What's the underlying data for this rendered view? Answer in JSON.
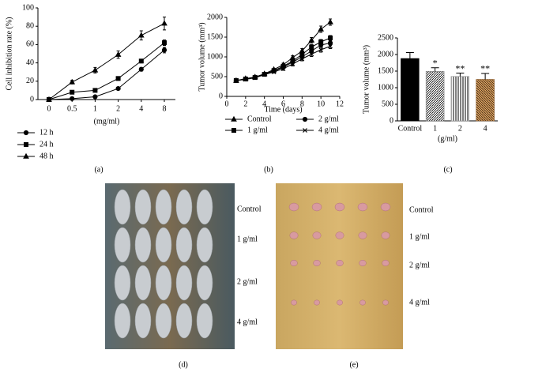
{
  "chart_data": [
    {
      "type": "line",
      "panel": "(a)",
      "ylabel": "Cell inhibition rate (%)",
      "xlabel": "(mg/ml)",
      "categories": [
        "0",
        "0.5",
        "1",
        "2",
        "4",
        "8"
      ],
      "ylim": [
        0,
        100
      ],
      "yticks": [
        0,
        20,
        40,
        60,
        80,
        100
      ],
      "series": [
        {
          "name": "12 h",
          "marker": "circle",
          "color": "#000000",
          "values": [
            0,
            1,
            3,
            12,
            33,
            54
          ],
          "errors": [
            0,
            0.5,
            1,
            1,
            2,
            3
          ]
        },
        {
          "name": "24 h",
          "marker": "square",
          "color": "#000000",
          "values": [
            0,
            8,
            10,
            23,
            42,
            62
          ],
          "errors": [
            0,
            1,
            1,
            2,
            2,
            3
          ]
        },
        {
          "name": "48 h",
          "marker": "triangle",
          "color": "#000000",
          "values": [
            0,
            19,
            32,
            49,
            70,
            83
          ],
          "errors": [
            0,
            2,
            3,
            4,
            5,
            7
          ]
        }
      ]
    },
    {
      "type": "line",
      "panel": "(b)",
      "ylabel": "Tumor volume (mm³)",
      "xlabel": "Time (days)",
      "x": [
        1,
        2,
        3,
        4,
        5,
        6,
        7,
        8,
        9,
        10,
        11
      ],
      "xlim": [
        0,
        12
      ],
      "xticks": [
        0,
        2,
        4,
        6,
        8,
        10,
        12
      ],
      "ylim": [
        0,
        2000
      ],
      "yticks": [
        0,
        500,
        1000,
        1500,
        2000
      ],
      "series": [
        {
          "name": "Control",
          "marker": "triangle",
          "color": "#000000",
          "values": [
            400,
            450,
            490,
            570,
            680,
            800,
            980,
            1150,
            1420,
            1700,
            1880
          ],
          "errors": [
            20,
            20,
            25,
            25,
            30,
            40,
            50,
            60,
            70,
            80,
            80
          ]
        },
        {
          "name": "1 g/ml",
          "marker": "square",
          "color": "#000000",
          "values": [
            400,
            440,
            480,
            560,
            650,
            760,
            900,
            1060,
            1250,
            1380,
            1480
          ],
          "errors": [
            20,
            20,
            25,
            25,
            30,
            40,
            50,
            50,
            60,
            60,
            60
          ]
        },
        {
          "name": "2 g/ml",
          "marker": "circle",
          "color": "#000000",
          "values": [
            400,
            440,
            480,
            560,
            640,
            740,
            870,
            1000,
            1150,
            1300,
            1350
          ],
          "errors": [
            20,
            20,
            25,
            25,
            30,
            40,
            50,
            50,
            60,
            60,
            60
          ]
        },
        {
          "name": "4 g/ml",
          "marker": "x",
          "color": "#000000",
          "values": [
            400,
            430,
            470,
            550,
            620,
            700,
            820,
            950,
            1070,
            1180,
            1270
          ],
          "errors": [
            20,
            20,
            25,
            25,
            30,
            40,
            50,
            50,
            60,
            60,
            60
          ]
        }
      ]
    },
    {
      "type": "bar",
      "panel": "(c)",
      "ylabel": "Tumor volume (mm³)",
      "xlabel": "(g/ml)",
      "categories": [
        "Control",
        "1",
        "2",
        "4"
      ],
      "values": [
        1880,
        1490,
        1340,
        1250
      ],
      "errors": [
        180,
        110,
        100,
        180
      ],
      "annotations": [
        null,
        "*",
        "**",
        "**"
      ],
      "colors": [
        "#000000",
        "#777777",
        "#999999",
        "#8a5a2a"
      ],
      "ylim": [
        0,
        2500
      ],
      "yticks": [
        0,
        500,
        1000,
        1500,
        2000,
        2500
      ]
    }
  ],
  "photos": [
    {
      "panel": "(d)",
      "labels": [
        "Control",
        "1 g/ml",
        "2 g/ml",
        "4 g/ml"
      ]
    },
    {
      "panel": "(e)",
      "labels": [
        "Control",
        "1 g/ml",
        "2 g/ml",
        "4 g/ml"
      ]
    }
  ]
}
